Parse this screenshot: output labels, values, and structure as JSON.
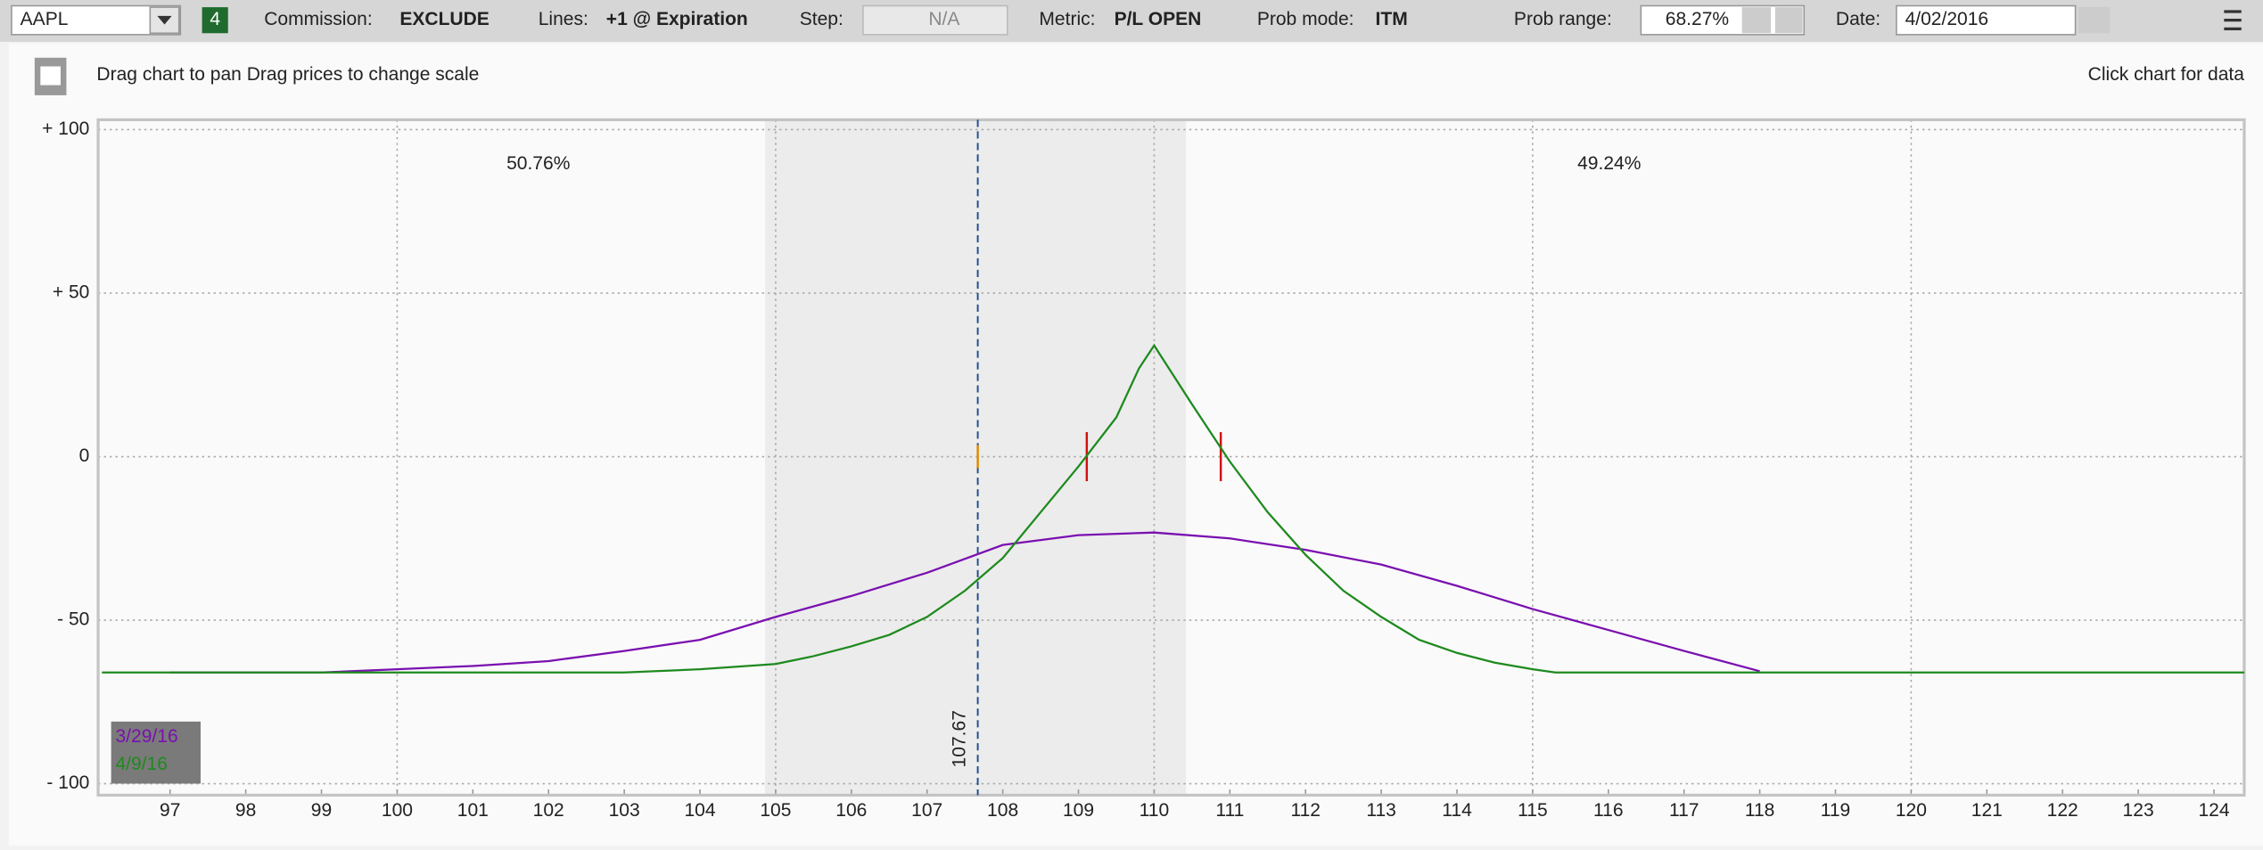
{
  "toolbar": {
    "symbol": "AAPL",
    "badge": "4",
    "commission_label": "Commission:",
    "commission": "EXCLUDE",
    "lines_label": "Lines:",
    "lines": "+1 @ Expiration",
    "step_label": "Step:",
    "step": "N/A",
    "metric_label": "Metric:",
    "metric": "P/L OPEN",
    "prob_mode_label": "Prob mode:",
    "prob_mode": "ITM",
    "prob_range_label": "Prob range:",
    "prob_range": "68.27%",
    "date_label": "Date:",
    "date": "4/02/2016"
  },
  "chart_header": {
    "hint": "Drag chart to pan Drag prices to change scale",
    "action": "Click chart for data"
  },
  "chart_data": {
    "type": "line",
    "xlim": [
      96.05,
      124.4
    ],
    "ylim": [
      -103.5,
      103
    ],
    "xticks": [
      97,
      98,
      99,
      100,
      101,
      102,
      103,
      104,
      105,
      106,
      107,
      108,
      109,
      110,
      111,
      112,
      113,
      114,
      115,
      116,
      117,
      118,
      119,
      120,
      121,
      122,
      123,
      124
    ],
    "x_gridlines": [
      100,
      105,
      110,
      115,
      120
    ],
    "yticks": [
      {
        "value": 100,
        "label": "+ 100"
      },
      {
        "value": 50,
        "label": "+ 50"
      },
      0,
      {
        "value": -50,
        "label": "- 50"
      },
      {
        "value": -100,
        "label": "- 100"
      }
    ],
    "grid": true,
    "shaded_range": [
      104.86,
      110.42
    ],
    "price_line": {
      "value": 107.67,
      "label": "107.67"
    },
    "breakevens": [
      109.11,
      110.88
    ],
    "left_probability": "50.76%",
    "right_probability": "49.24%",
    "series": [
      {
        "name": "3/29/16",
        "color": "#7a10b0",
        "x": [
          97,
          98,
          99,
          100,
          101,
          102,
          103,
          104,
          105,
          106,
          107,
          108,
          109,
          110,
          111,
          112,
          113,
          114,
          115,
          116,
          117,
          118
        ],
        "values": [
          -66,
          -66,
          -66,
          -65,
          -64,
          -62.5,
          -59.4,
          -56,
          -49,
          -42.6,
          -35.5,
          -27,
          -24,
          -23.2,
          -25,
          -28.5,
          -33,
          -39.5,
          -46.6,
          -53,
          -59.4,
          -65.6
        ]
      },
      {
        "name": "4/9/16",
        "color": "#1e8a1e",
        "x": [
          96.1,
          103,
          104,
          105,
          105.5,
          106,
          106.5,
          107,
          107.5,
          108,
          108.5,
          109,
          109.5,
          109.8,
          110,
          110.5,
          111,
          111.5,
          112,
          112.5,
          113,
          113.5,
          114,
          114.5,
          115,
          115.3,
          124.4
        ],
        "values": [
          -66,
          -66,
          -65,
          -63.4,
          -61,
          -58,
          -54.5,
          -49,
          -41,
          -31,
          -17,
          -3,
          12,
          27,
          34,
          16,
          -1.5,
          -17,
          -30,
          -41,
          -49,
          -56,
          -60,
          -63,
          -65,
          -66,
          -66
        ]
      }
    ]
  }
}
